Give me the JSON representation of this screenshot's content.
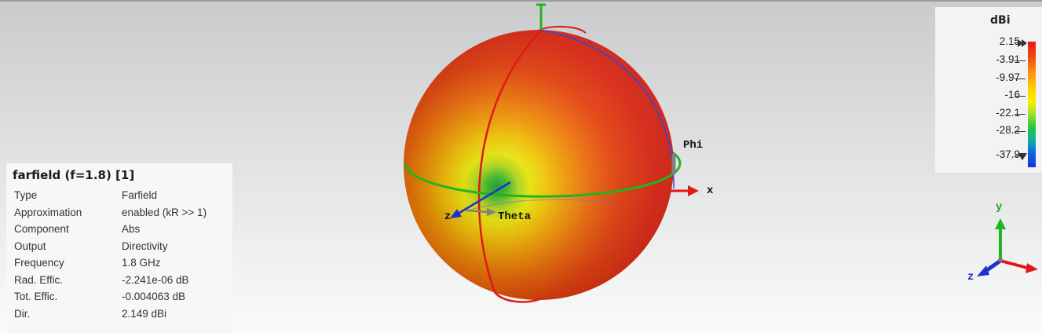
{
  "farfield": {
    "title": "farfield (f=1.8) [1]",
    "rows": [
      {
        "key": "Type",
        "value": "Farfield"
      },
      {
        "key": "Approximation",
        "value": "enabled (kR >> 1)"
      },
      {
        "key": "Component",
        "value": "Abs"
      },
      {
        "key": "Output",
        "value": "Directivity"
      },
      {
        "key": "Frequency",
        "value": "1.8 GHz"
      },
      {
        "key": "Rad. Effic.",
        "value": "-2.241e-06 dB"
      },
      {
        "key": "Tot. Effic.",
        "value": "-0.004063 dB"
      },
      {
        "key": "Dir.",
        "value": "2.149 dBi"
      }
    ]
  },
  "legend": {
    "title": "dBi",
    "labels": [
      "2.15",
      "-3.91",
      "-9.97",
      "-16",
      "-22.1",
      "-28.2",
      "-37.9"
    ]
  },
  "scene_labels": {
    "phi": "Phi",
    "theta": "Theta",
    "x": "x",
    "z": "z"
  },
  "triad_labels": {
    "y": "y",
    "z": "z"
  },
  "colors": {
    "max": "#e31818",
    "min": "#1830d8",
    "phi_ring": "#22b422",
    "theta_ring": "#e01818",
    "axis_x": "#e01818",
    "axis_y": "#22b422",
    "axis_z": "#2030d0"
  }
}
